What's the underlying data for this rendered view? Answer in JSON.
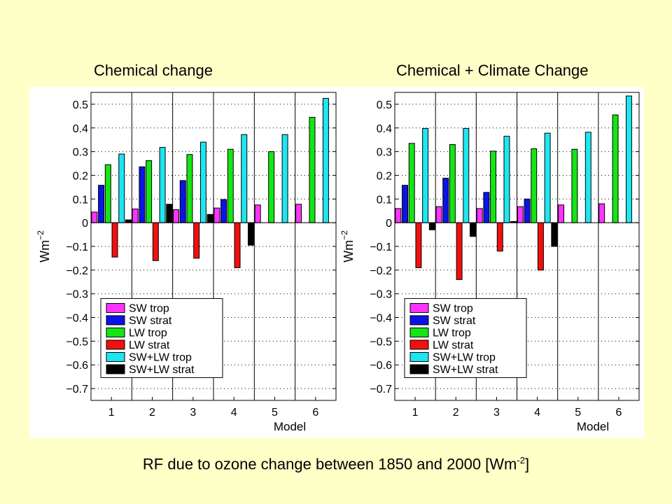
{
  "caption": {
    "text": "RF due to ozone change between 1850 and 2000  [Wm",
    "exponent": "-2",
    "close": "]"
  },
  "colors": {
    "SW trop": "#ff33ff",
    "SW strat": "#0a14e6",
    "LW trop": "#14e614",
    "LW strat": "#f01010",
    "SW+LW trop": "#1ee6f0",
    "SW+LW strat": "#000000"
  },
  "chart_data": [
    {
      "type": "bar",
      "title": "Chemical change",
      "xlabel": "Model",
      "ylabel": "Wm",
      "ylabel_exponent": "−2",
      "ylim": [
        -0.75,
        0.55
      ],
      "yticks": [
        "0.5",
        "0.4",
        "0.3",
        "0.2",
        "0.1",
        "0",
        "−0.1",
        "−0.2",
        "−0.3",
        "−0.4",
        "−0.5",
        "−0.6",
        "−0.7"
      ],
      "ytick_values": [
        0.5,
        0.4,
        0.3,
        0.2,
        0.1,
        0,
        -0.1,
        -0.2,
        -0.3,
        -0.4,
        -0.5,
        -0.6,
        -0.7
      ],
      "categories": [
        "1",
        "2",
        "3",
        "4",
        "5",
        "6"
      ],
      "grid": true,
      "legend_position": "bottom-left",
      "series": [
        {
          "name": "SW trop",
          "values": [
            0.045,
            0.058,
            0.055,
            0.062,
            0.075,
            0.078
          ]
        },
        {
          "name": "SW strat",
          "values": [
            0.158,
            0.236,
            0.178,
            0.098,
            null,
            null
          ]
        },
        {
          "name": "LW trop",
          "values": [
            0.245,
            0.262,
            0.288,
            0.31,
            0.3,
            0.445
          ]
        },
        {
          "name": "LW strat",
          "values": [
            -0.145,
            -0.16,
            -0.15,
            -0.19,
            null,
            null
          ]
        },
        {
          "name": "SW+LW trop",
          "values": [
            0.29,
            0.318,
            0.34,
            0.372,
            0.372,
            0.525
          ]
        },
        {
          "name": "SW+LW strat",
          "values": [
            0.012,
            0.078,
            0.035,
            -0.095,
            null,
            null
          ]
        }
      ]
    },
    {
      "type": "bar",
      "title": "Chemical + Climate Change",
      "xlabel": "Model",
      "ylabel": "Wm",
      "ylabel_exponent": "−2",
      "ylim": [
        -0.75,
        0.55
      ],
      "yticks": [
        "0.5",
        "0.4",
        "0.3",
        "0.2",
        "0.1",
        "0",
        "−0.1",
        "−0.2",
        "−0.3",
        "−0.4",
        "−0.5",
        "−0.6",
        "−0.7"
      ],
      "ytick_values": [
        0.5,
        0.4,
        0.3,
        0.2,
        0.1,
        0,
        -0.1,
        -0.2,
        -0.3,
        -0.4,
        -0.5,
        -0.6,
        -0.7
      ],
      "categories": [
        "1",
        "2",
        "3",
        "4",
        "5",
        "6"
      ],
      "grid": true,
      "legend_position": "bottom-left",
      "series": [
        {
          "name": "SW trop",
          "values": [
            0.06,
            0.068,
            0.06,
            0.068,
            0.075,
            0.08
          ]
        },
        {
          "name": "SW strat",
          "values": [
            0.158,
            0.188,
            0.128,
            0.1,
            null,
            null
          ]
        },
        {
          "name": "LW trop",
          "values": [
            0.335,
            0.33,
            0.302,
            0.312,
            0.31,
            0.455
          ]
        },
        {
          "name": "LW strat",
          "values": [
            -0.19,
            -0.24,
            -0.12,
            -0.2,
            null,
            null
          ]
        },
        {
          "name": "SW+LW trop",
          "values": [
            0.398,
            0.398,
            0.365,
            0.378,
            0.382,
            0.535
          ]
        },
        {
          "name": "SW+LW strat",
          "values": [
            -0.03,
            -0.058,
            0.005,
            -0.1,
            null,
            null
          ]
        }
      ]
    }
  ]
}
